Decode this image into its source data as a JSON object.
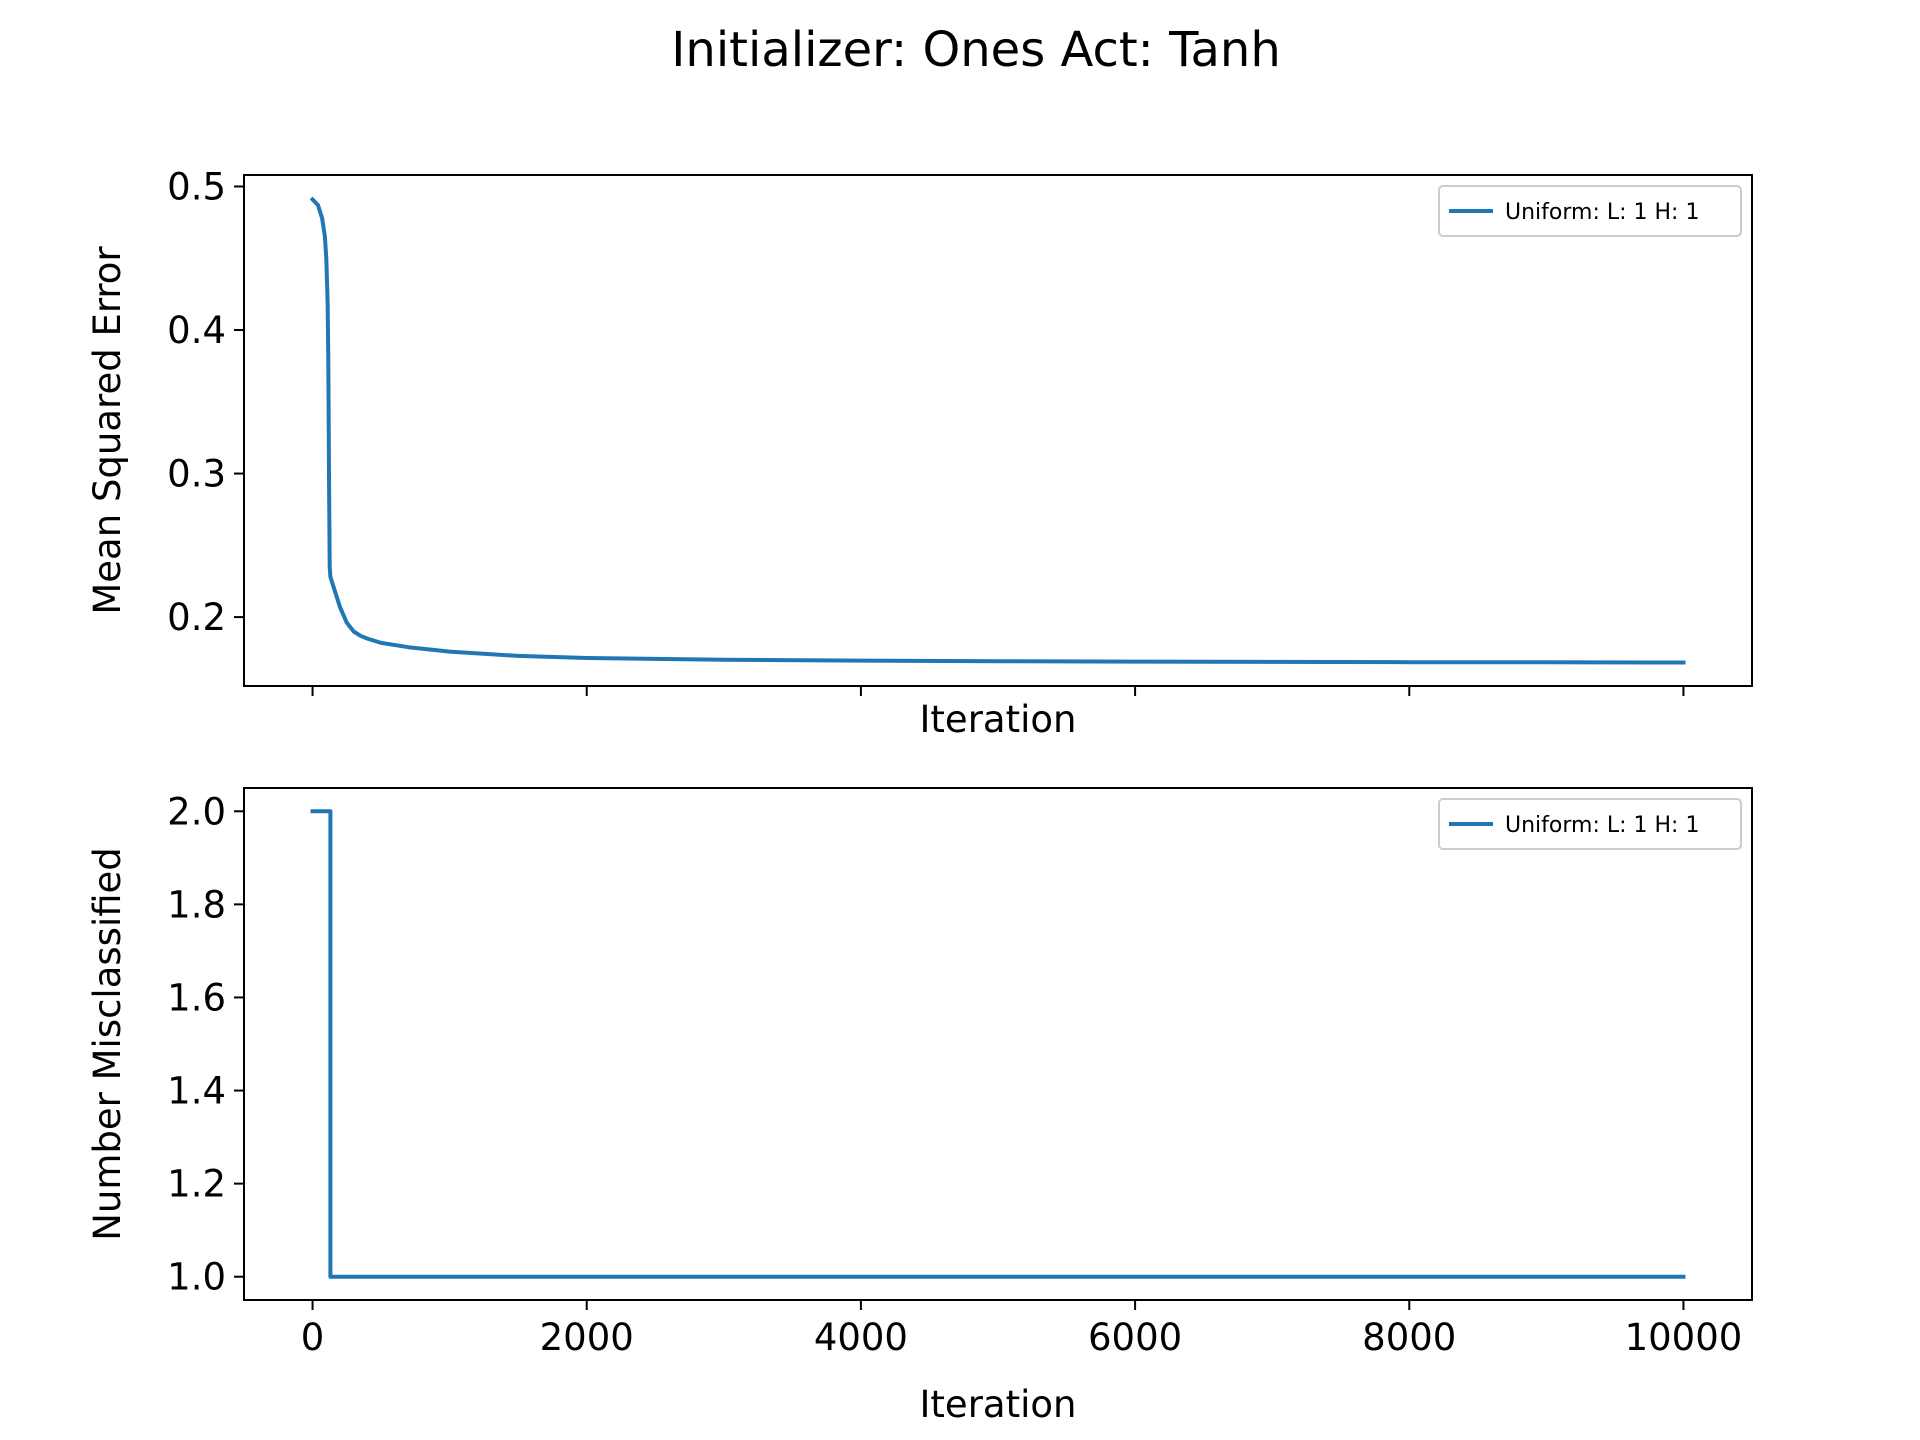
{
  "figure": {
    "title": "Initializer: Ones Act: Tanh"
  },
  "colors": {
    "series": "#1f77b4",
    "axes": "#000000",
    "legend_border": "#cccccc",
    "background": "#ffffff"
  },
  "chart_data": [
    {
      "type": "line",
      "title": "",
      "xlabel": "Iteration",
      "ylabel": "Mean Squared Error",
      "xlim": [
        -500,
        10500
      ],
      "ylim": [
        0.152,
        0.508
      ],
      "xticks": [
        0,
        2000,
        4000,
        6000,
        8000,
        10000
      ],
      "yticks": [
        0.2,
        0.3,
        0.4,
        0.5
      ],
      "ytick_labels": [
        "0.2",
        "0.3",
        "0.4",
        "0.5"
      ],
      "show_xtick_labels": false,
      "grid": false,
      "legend_position": "upper right",
      "series": [
        {
          "name": "Uniform: L: 1 H: 1",
          "x": [
            0,
            40,
            70,
            90,
            100,
            110,
            115,
            120,
            125,
            130,
            150,
            200,
            250,
            300,
            350,
            400,
            500,
            700,
            1000,
            1500,
            2000,
            3000,
            4000,
            5000,
            6000,
            7000,
            8000,
            9000,
            10000
          ],
          "y": [
            0.491,
            0.487,
            0.478,
            0.465,
            0.45,
            0.42,
            0.38,
            0.3,
            0.235,
            0.228,
            0.222,
            0.207,
            0.196,
            0.19,
            0.187,
            0.185,
            0.182,
            0.179,
            0.176,
            0.173,
            0.1715,
            0.1703,
            0.1697,
            0.1693,
            0.169,
            0.1688,
            0.1686,
            0.1685,
            0.1684
          ]
        }
      ]
    },
    {
      "type": "line",
      "title": "",
      "xlabel": "Iteration",
      "ylabel": "Number Misclassified",
      "xlim": [
        -500,
        10500
      ],
      "ylim": [
        0.95,
        2.05
      ],
      "xticks": [
        0,
        2000,
        4000,
        6000,
        8000,
        10000
      ],
      "xtick_labels": [
        "0",
        "2000",
        "4000",
        "6000",
        "8000",
        "10000"
      ],
      "yticks": [
        1.0,
        1.2,
        1.4,
        1.6,
        1.8,
        2.0
      ],
      "ytick_labels": [
        "1.0",
        "1.2",
        "1.4",
        "1.6",
        "1.8",
        "2.0"
      ],
      "show_xtick_labels": true,
      "grid": false,
      "legend_position": "upper right",
      "series": [
        {
          "name": "Uniform: L: 1 H: 1",
          "x": [
            0,
            130,
            130,
            10000
          ],
          "y": [
            2.0,
            2.0,
            1.0,
            1.0
          ]
        }
      ]
    }
  ]
}
